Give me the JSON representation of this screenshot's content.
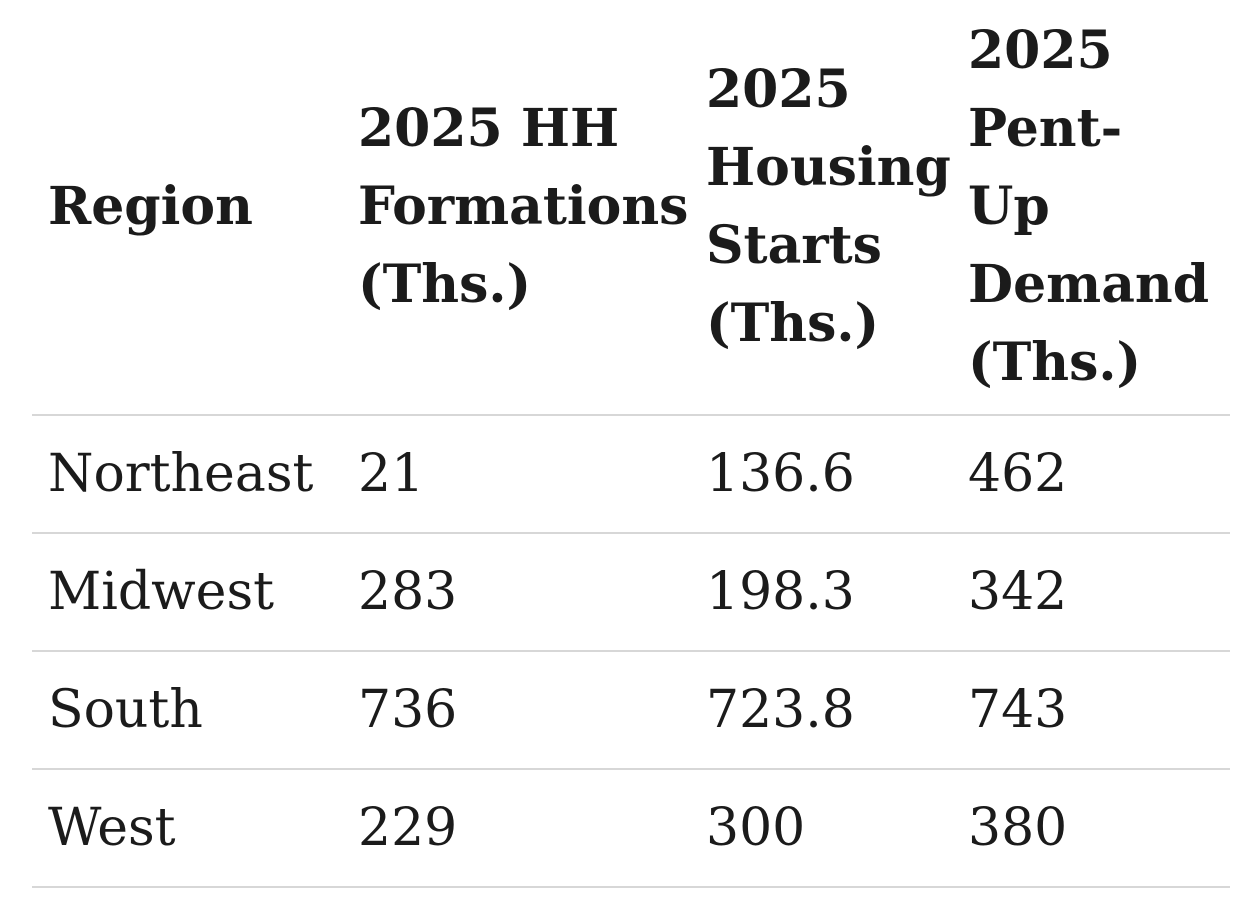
{
  "chart_data": {
    "type": "table",
    "title": "",
    "columns": [
      "Region",
      "2025 HH Formations (Ths.)",
      "2025 Housing Starts (Ths.)",
      "2025 Pent-Up Demand (Ths.)"
    ],
    "rows": [
      [
        "Northeast",
        "21",
        "136.6",
        "462"
      ],
      [
        "Midwest",
        "283",
        "198.3",
        "342"
      ],
      [
        "South",
        "736",
        "723.8",
        "743"
      ],
      [
        "West",
        "229",
        "300",
        "380"
      ]
    ],
    "units": "Ths.",
    "layout": {
      "header_bold": true,
      "row_divider_color": "#d7d7d7",
      "text_color": "#1b1b1b",
      "background_color": "#ffffff"
    }
  }
}
